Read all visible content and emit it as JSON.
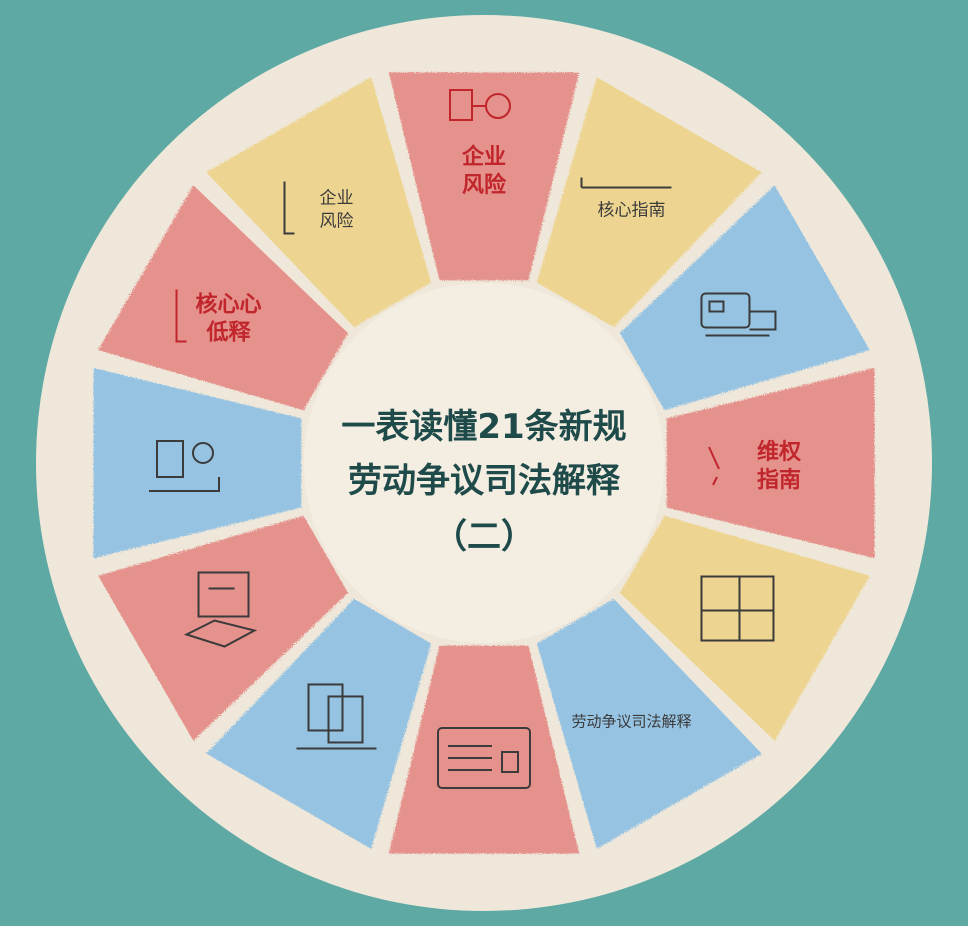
{
  "center": {
    "title_line1": "一表读懂21条新规",
    "title_line2": "劳动争议司法解释",
    "title_line3": "（二）"
  },
  "colors": {
    "background": "#5fa9a4",
    "disc": "#efe8da",
    "inner": "#f4eee2",
    "red": "#e58a86",
    "yellow": "#edd38a",
    "blue": "#8fc0e3",
    "title": "#1f4a4a",
    "label_red": "#c0262c",
    "label_dark": "#3b3b3b"
  },
  "segments": [
    {
      "name": "segment-enterprise-risk-red",
      "color": "red",
      "icon": "document-icon",
      "lines": [
        "企业",
        "风险"
      ],
      "label_color": "label_red",
      "bold": true
    },
    {
      "name": "segment-core-guide",
      "color": "yellow",
      "icon": "line-icon",
      "lines": [
        "核心指南"
      ],
      "label_color": "label_dark",
      "bold": false
    },
    {
      "name": "segment-card",
      "color": "blue",
      "icon": "card-icon",
      "lines": [],
      "label_color": "label_dark",
      "bold": false
    },
    {
      "name": "segment-rights-guide",
      "color": "red",
      "icon": "pen-icon",
      "lines": [
        "维权",
        "指南"
      ],
      "label_color": "label_red",
      "bold": true
    },
    {
      "name": "segment-stamp",
      "color": "yellow",
      "icon": "stamp-icon",
      "lines": [],
      "label_color": "label_dark",
      "bold": false
    },
    {
      "name": "segment-judicial-interpretation",
      "color": "blue",
      "icon": "none",
      "lines": [
        "劳动争议司法解释"
      ],
      "label_color": "label_dark",
      "bold": false
    },
    {
      "name": "segment-contract",
      "color": "red",
      "icon": "contract-icon",
      "lines": [],
      "label_color": "label_dark",
      "bold": false
    },
    {
      "name": "segment-documents",
      "color": "blue",
      "icon": "documents-icon",
      "lines": [],
      "label_color": "label_dark",
      "bold": false
    },
    {
      "name": "segment-form",
      "color": "red",
      "icon": "form-icon",
      "lines": [],
      "label_color": "label_dark",
      "bold": false
    },
    {
      "name": "segment-office",
      "color": "blue",
      "icon": "office-icon",
      "lines": [],
      "label_color": "label_dark",
      "bold": false
    },
    {
      "name": "segment-core-release",
      "color": "red",
      "icon": "bracket-icon",
      "lines": [
        "核心心",
        "低释"
      ],
      "label_color": "label_red",
      "bold": true
    },
    {
      "name": "segment-enterprise-risk-yellow",
      "color": "yellow",
      "icon": "bracket-icon",
      "lines": [
        "企业",
        "风险"
      ],
      "label_color": "label_dark",
      "bold": false
    }
  ]
}
